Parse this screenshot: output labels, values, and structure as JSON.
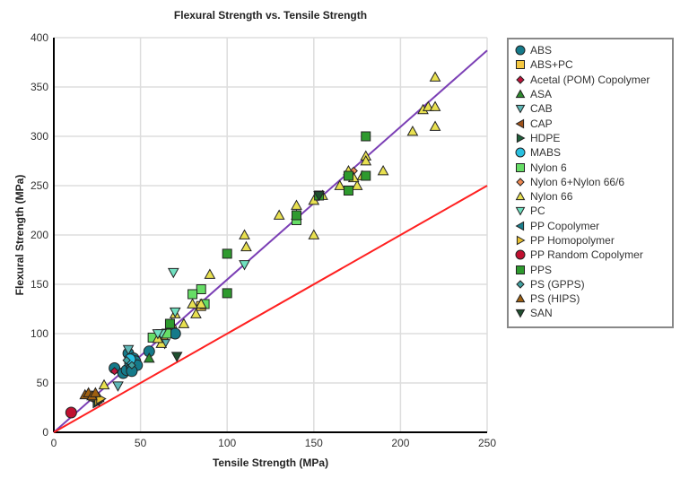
{
  "chart_data": {
    "type": "scatter",
    "title": "Flexural Strength vs. Tensile Strength",
    "xlabel": "Tensile Strength (MPa)",
    "ylabel": "Flexural Strength (MPa)",
    "xlim": [
      0,
      250
    ],
    "ylim": [
      0,
      400
    ],
    "xticks": [
      0,
      50,
      100,
      150,
      200,
      250
    ],
    "yticks": [
      0,
      50,
      100,
      150,
      200,
      250,
      300,
      350,
      400
    ],
    "grid": true,
    "legend_position": "right",
    "reference_lines": [
      {
        "color": "#7b3fb5",
        "points": [
          [
            0,
            0
          ],
          [
            250,
            387
          ]
        ]
      },
      {
        "color": "#ff2020",
        "points": [
          [
            0,
            0
          ],
          [
            250,
            250
          ]
        ]
      }
    ],
    "series": [
      {
        "name": "ABS",
        "marker": "circle",
        "color": "#157a8a",
        "points": [
          [
            35,
            65
          ],
          [
            40,
            60
          ],
          [
            42,
            63
          ],
          [
            43,
            80
          ],
          [
            44,
            70
          ],
          [
            45,
            65
          ],
          [
            46,
            75
          ],
          [
            47,
            72
          ],
          [
            48,
            68
          ],
          [
            55,
            82
          ],
          [
            70,
            100
          ],
          [
            45,
            62
          ]
        ]
      },
      {
        "name": "ABS+PC",
        "marker": "square",
        "color": "#f5c842",
        "points": [
          [
            85,
            128
          ],
          [
            63,
            95
          ]
        ]
      },
      {
        "name": "Acetal (POM) Copolymer",
        "marker": "diamond",
        "color": "#c0143c",
        "points": [
          [
            35,
            62
          ]
        ]
      },
      {
        "name": "ASA",
        "marker": "triangle-up",
        "color": "#2e8b2e",
        "points": [
          [
            55,
            75
          ]
        ]
      },
      {
        "name": "CAB",
        "marker": "triangle-down",
        "color": "#5fb8b8",
        "points": [
          [
            43,
            84
          ],
          [
            37,
            47
          ],
          [
            64,
            90
          ]
        ]
      },
      {
        "name": "CAP",
        "marker": "triangle-left",
        "color": "#a0521a",
        "points": [
          [
            24,
            32
          ]
        ]
      },
      {
        "name": "HDPE",
        "marker": "triangle-right",
        "color": "#1f5f3a",
        "points": [
          [
            25,
            30
          ]
        ]
      },
      {
        "name": "MABS",
        "marker": "circle",
        "color": "#29c0e0",
        "points": [
          [
            44,
            74
          ]
        ]
      },
      {
        "name": "Nylon 6",
        "marker": "square",
        "color": "#66dd66",
        "points": [
          [
            140,
            215
          ],
          [
            85,
            145
          ],
          [
            80,
            140
          ],
          [
            87,
            130
          ],
          [
            65,
            100
          ],
          [
            57,
            96
          ]
        ]
      },
      {
        "name": "Nylon 6+Nylon 66/6",
        "marker": "diamond",
        "color": "#f08850",
        "points": [
          [
            173,
            265
          ]
        ]
      },
      {
        "name": "Nylon 66",
        "marker": "triangle-up",
        "color": "#e8e050",
        "points": [
          [
            220,
            360
          ],
          [
            213,
            327
          ],
          [
            216,
            330
          ],
          [
            220,
            330
          ],
          [
            220,
            310
          ],
          [
            207,
            305
          ],
          [
            190,
            265
          ],
          [
            180,
            280
          ],
          [
            180,
            275
          ],
          [
            178,
            260
          ],
          [
            175,
            250
          ],
          [
            173,
            258
          ],
          [
            170,
            265
          ],
          [
            165,
            250
          ],
          [
            155,
            240
          ],
          [
            150,
            235
          ],
          [
            150,
            200
          ],
          [
            140,
            230
          ],
          [
            140,
            220
          ],
          [
            130,
            220
          ],
          [
            110,
            200
          ],
          [
            111,
            188
          ],
          [
            90,
            160
          ],
          [
            85,
            130
          ],
          [
            82,
            120
          ],
          [
            80,
            130
          ],
          [
            75,
            110
          ],
          [
            70,
            120
          ],
          [
            68,
            110
          ],
          [
            62,
            90
          ],
          [
            60,
            95
          ],
          [
            29,
            48
          ],
          [
            26,
            35
          ],
          [
            23,
            36
          ]
        ]
      },
      {
        "name": "PC",
        "marker": "triangle-down",
        "color": "#70e0c0",
        "points": [
          [
            69,
            162
          ],
          [
            70,
            122
          ],
          [
            62,
            100
          ],
          [
            110,
            170
          ],
          [
            60,
            100
          ]
        ]
      },
      {
        "name": "PP Copolymer",
        "marker": "triangle-left",
        "color": "#1a7f8e",
        "points": [
          [
            22,
            38
          ]
        ]
      },
      {
        "name": "PP Homopolymer",
        "marker": "triangle-right",
        "color": "#e8c030",
        "points": [
          [
            26,
            32
          ],
          [
            27,
            34
          ]
        ]
      },
      {
        "name": "PP Random Copolymer",
        "marker": "circle",
        "color": "#c01030",
        "points": [
          [
            10,
            20
          ]
        ]
      },
      {
        "name": "PPS",
        "marker": "square",
        "color": "#2e9a2e",
        "points": [
          [
            180,
            300
          ],
          [
            180,
            260
          ],
          [
            170,
            245
          ],
          [
            170,
            260
          ],
          [
            153,
            240
          ],
          [
            140,
            220
          ],
          [
            100,
            181
          ],
          [
            100,
            141
          ],
          [
            67,
            110
          ]
        ]
      },
      {
        "name": "PS (GPPS)",
        "marker": "diamond",
        "color": "#40a0a0",
        "points": [
          [
            45,
            68
          ],
          [
            42,
            73
          ]
        ]
      },
      {
        "name": "PS (HIPS)",
        "marker": "triangle-up",
        "color": "#a06010",
        "points": [
          [
            18,
            38
          ],
          [
            20,
            40
          ],
          [
            22,
            37
          ],
          [
            24,
            40
          ]
        ]
      },
      {
        "name": "SAN",
        "marker": "triangle-down",
        "color": "#1f4f2f",
        "points": [
          [
            71,
            77
          ],
          [
            153,
            240
          ]
        ]
      }
    ]
  }
}
